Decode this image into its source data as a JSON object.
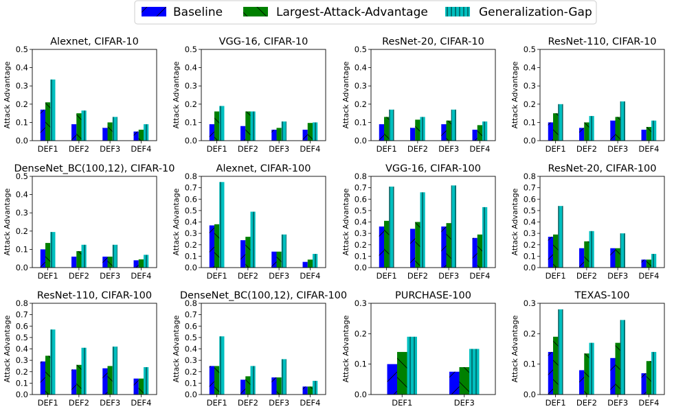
{
  "legend": [
    {
      "name": "Baseline",
      "color": "#0000ff",
      "hatch": "slash"
    },
    {
      "name": "Largest-Attack-Advantage",
      "color": "#008000",
      "hatch": "backslash"
    },
    {
      "name": "Generalization-Gap",
      "color": "#00bfbf",
      "hatch": "vertical"
    }
  ],
  "chart_data": [
    {
      "type": "bar",
      "title": "Alexnet, CIFAR-10",
      "ylabel": "Attack Advantage",
      "ylim": [
        0,
        0.5
      ],
      "yticks": [
        "0.0",
        "0.1",
        "0.2",
        "0.3",
        "0.4",
        "0.5"
      ],
      "categories": [
        "DEF1",
        "DEF2",
        "DEF3",
        "DEF4"
      ],
      "series": [
        {
          "name": "Baseline",
          "values": [
            0.17,
            0.09,
            0.07,
            0.05
          ]
        },
        {
          "name": "Largest-Attack-Advantage",
          "values": [
            0.21,
            0.15,
            0.1,
            0.06
          ]
        },
        {
          "name": "Generalization-Gap",
          "values": [
            0.335,
            0.165,
            0.13,
            0.09
          ]
        }
      ]
    },
    {
      "type": "bar",
      "title": "VGG-16, CIFAR-10",
      "ylabel": "Attack Advantage",
      "ylim": [
        0,
        0.5
      ],
      "yticks": [
        "0.0",
        "0.1",
        "0.2",
        "0.3",
        "0.4",
        "0.5"
      ],
      "categories": [
        "DEF1",
        "DEF2",
        "DEF3",
        "DEF4"
      ],
      "series": [
        {
          "name": "Baseline",
          "values": [
            0.09,
            0.08,
            0.06,
            0.06
          ]
        },
        {
          "name": "Largest-Attack-Advantage",
          "values": [
            0.16,
            0.16,
            0.07,
            0.097
          ]
        },
        {
          "name": "Generalization-Gap",
          "values": [
            0.19,
            0.16,
            0.105,
            0.1
          ]
        }
      ]
    },
    {
      "type": "bar",
      "title": "ResNet-20, CIFAR-10",
      "ylabel": "Attack Advantage",
      "ylim": [
        0,
        0.5
      ],
      "yticks": [
        "0.0",
        "0.1",
        "0.2",
        "0.3",
        "0.4",
        "0.5"
      ],
      "categories": [
        "DEF1",
        "DEF2",
        "DEF3",
        "DEF4"
      ],
      "series": [
        {
          "name": "Baseline",
          "values": [
            0.09,
            0.07,
            0.09,
            0.06
          ]
        },
        {
          "name": "Largest-Attack-Advantage",
          "values": [
            0.13,
            0.115,
            0.11,
            0.085
          ]
        },
        {
          "name": "Generalization-Gap",
          "values": [
            0.17,
            0.13,
            0.17,
            0.105
          ]
        }
      ]
    },
    {
      "type": "bar",
      "title": "ResNet-110, CIFAR-10",
      "ylabel": "Attack Advantage",
      "ylim": [
        0,
        0.5
      ],
      "yticks": [
        "0.0",
        "0.1",
        "0.2",
        "0.3",
        "0.4",
        "0.5"
      ],
      "categories": [
        "DEF1",
        "DEF2",
        "DEF3",
        "DEF4"
      ],
      "series": [
        {
          "name": "Baseline",
          "values": [
            0.1,
            0.07,
            0.11,
            0.06
          ]
        },
        {
          "name": "Largest-Attack-Advantage",
          "values": [
            0.15,
            0.1,
            0.13,
            0.075
          ]
        },
        {
          "name": "Generalization-Gap",
          "values": [
            0.2,
            0.135,
            0.215,
            0.11
          ]
        }
      ]
    },
    {
      "type": "bar",
      "title": "DenseNet_BC(100,12), CIFAR-10",
      "ylabel": "Attack Advantage",
      "ylim": [
        0,
        0.5
      ],
      "yticks": [
        "0.0",
        "0.1",
        "0.2",
        "0.3",
        "0.4",
        "0.5"
      ],
      "categories": [
        "DEF1",
        "DEF2",
        "DEF3",
        "DEF4"
      ],
      "series": [
        {
          "name": "Baseline",
          "values": [
            0.1,
            0.06,
            0.06,
            0.04
          ]
        },
        {
          "name": "Largest-Attack-Advantage",
          "values": [
            0.135,
            0.09,
            0.06,
            0.045
          ]
        },
        {
          "name": "Generalization-Gap",
          "values": [
            0.195,
            0.125,
            0.125,
            0.07
          ]
        }
      ]
    },
    {
      "type": "bar",
      "title": "Alexnet, CIFAR-100",
      "ylabel": "Attack Advantage",
      "ylim": [
        0,
        0.8
      ],
      "yticks": [
        "0.0",
        "0.1",
        "0.2",
        "0.3",
        "0.4",
        "0.5",
        "0.6",
        "0.7",
        "0.8"
      ],
      "categories": [
        "DEF1",
        "DEF2",
        "DEF3",
        "DEF4"
      ],
      "series": [
        {
          "name": "Baseline",
          "values": [
            0.37,
            0.24,
            0.14,
            0.05
          ]
        },
        {
          "name": "Largest-Attack-Advantage",
          "values": [
            0.38,
            0.27,
            0.14,
            0.07
          ]
        },
        {
          "name": "Generalization-Gap",
          "values": [
            0.75,
            0.49,
            0.29,
            0.12
          ]
        }
      ]
    },
    {
      "type": "bar",
      "title": "VGG-16, CIFAR-100",
      "ylabel": "Attack Advantage",
      "ylim": [
        0,
        0.8
      ],
      "yticks": [
        "0.0",
        "0.1",
        "0.2",
        "0.3",
        "0.4",
        "0.5",
        "0.6",
        "0.7",
        "0.8"
      ],
      "categories": [
        "DEF1",
        "DEF2",
        "DEF3",
        "DEF4"
      ],
      "series": [
        {
          "name": "Baseline",
          "values": [
            0.36,
            0.34,
            0.36,
            0.26
          ]
        },
        {
          "name": "Largest-Attack-Advantage",
          "values": [
            0.41,
            0.4,
            0.39,
            0.29
          ]
        },
        {
          "name": "Generalization-Gap",
          "values": [
            0.71,
            0.66,
            0.72,
            0.53
          ]
        }
      ]
    },
    {
      "type": "bar",
      "title": "ResNet-20, CIFAR-100",
      "ylabel": "Attack Advantage",
      "ylim": [
        0,
        0.8
      ],
      "yticks": [
        "0.0",
        "0.1",
        "0.2",
        "0.3",
        "0.4",
        "0.5",
        "0.6",
        "0.7",
        "0.8"
      ],
      "categories": [
        "DEF1",
        "DEF2",
        "DEF3",
        "DEF4"
      ],
      "series": [
        {
          "name": "Baseline",
          "values": [
            0.27,
            0.17,
            0.17,
            0.07
          ]
        },
        {
          "name": "Largest-Attack-Advantage",
          "values": [
            0.29,
            0.23,
            0.17,
            0.07
          ]
        },
        {
          "name": "Generalization-Gap",
          "values": [
            0.54,
            0.32,
            0.3,
            0.12
          ]
        }
      ]
    },
    {
      "type": "bar",
      "title": "ResNet-110, CIFAR-100",
      "ylabel": "Attack Advantage",
      "ylim": [
        0,
        0.8
      ],
      "yticks": [
        "0.0",
        "0.1",
        "0.2",
        "0.3",
        "0.4",
        "0.5",
        "0.6",
        "0.7",
        "0.8"
      ],
      "categories": [
        "DEF1",
        "DEF2",
        "DEF3",
        "DEF4"
      ],
      "series": [
        {
          "name": "Baseline",
          "values": [
            0.29,
            0.22,
            0.23,
            0.14
          ]
        },
        {
          "name": "Largest-Attack-Advantage",
          "values": [
            0.34,
            0.26,
            0.25,
            0.14
          ]
        },
        {
          "name": "Generalization-Gap",
          "values": [
            0.57,
            0.41,
            0.42,
            0.24
          ]
        }
      ]
    },
    {
      "type": "bar",
      "title": "DenseNet_BC(100,12), CIFAR-100",
      "ylabel": "Attack Advantage",
      "ylim": [
        0,
        0.8
      ],
      "yticks": [
        "0.0",
        "0.1",
        "0.2",
        "0.3",
        "0.4",
        "0.5",
        "0.6",
        "0.7",
        "0.8"
      ],
      "categories": [
        "DEF1",
        "DEF2",
        "DEF3",
        "DEF4"
      ],
      "series": [
        {
          "name": "Baseline",
          "values": [
            0.25,
            0.13,
            0.15,
            0.07
          ]
        },
        {
          "name": "Largest-Attack-Advantage",
          "values": [
            0.25,
            0.16,
            0.15,
            0.07
          ]
        },
        {
          "name": "Generalization-Gap",
          "values": [
            0.51,
            0.25,
            0.31,
            0.12
          ]
        }
      ]
    },
    {
      "type": "bar",
      "title": "PURCHASE-100",
      "ylabel": "Attack Advantage",
      "ylim": [
        0,
        0.3
      ],
      "yticks": [
        "0.0",
        "0.1",
        "0.2",
        "0.3"
      ],
      "categories": [
        "DEF1",
        "DEF3"
      ],
      "series": [
        {
          "name": "Baseline",
          "values": [
            0.1,
            0.075
          ]
        },
        {
          "name": "Largest-Attack-Advantage",
          "values": [
            0.14,
            0.09
          ]
        },
        {
          "name": "Generalization-Gap",
          "values": [
            0.19,
            0.15
          ]
        }
      ]
    },
    {
      "type": "bar",
      "title": "TEXAS-100",
      "ylabel": "Attack Advantage",
      "ylim": [
        0,
        0.3
      ],
      "yticks": [
        "0.0",
        "0.1",
        "0.2",
        "0.3"
      ],
      "categories": [
        "DEF1",
        "DEF2",
        "DEF3",
        "DEF4"
      ],
      "series": [
        {
          "name": "Baseline",
          "values": [
            0.14,
            0.08,
            0.12,
            0.07
          ]
        },
        {
          "name": "Largest-Attack-Advantage",
          "values": [
            0.19,
            0.135,
            0.17,
            0.11
          ]
        },
        {
          "name": "Generalization-Gap",
          "values": [
            0.28,
            0.17,
            0.245,
            0.14
          ]
        }
      ]
    }
  ]
}
